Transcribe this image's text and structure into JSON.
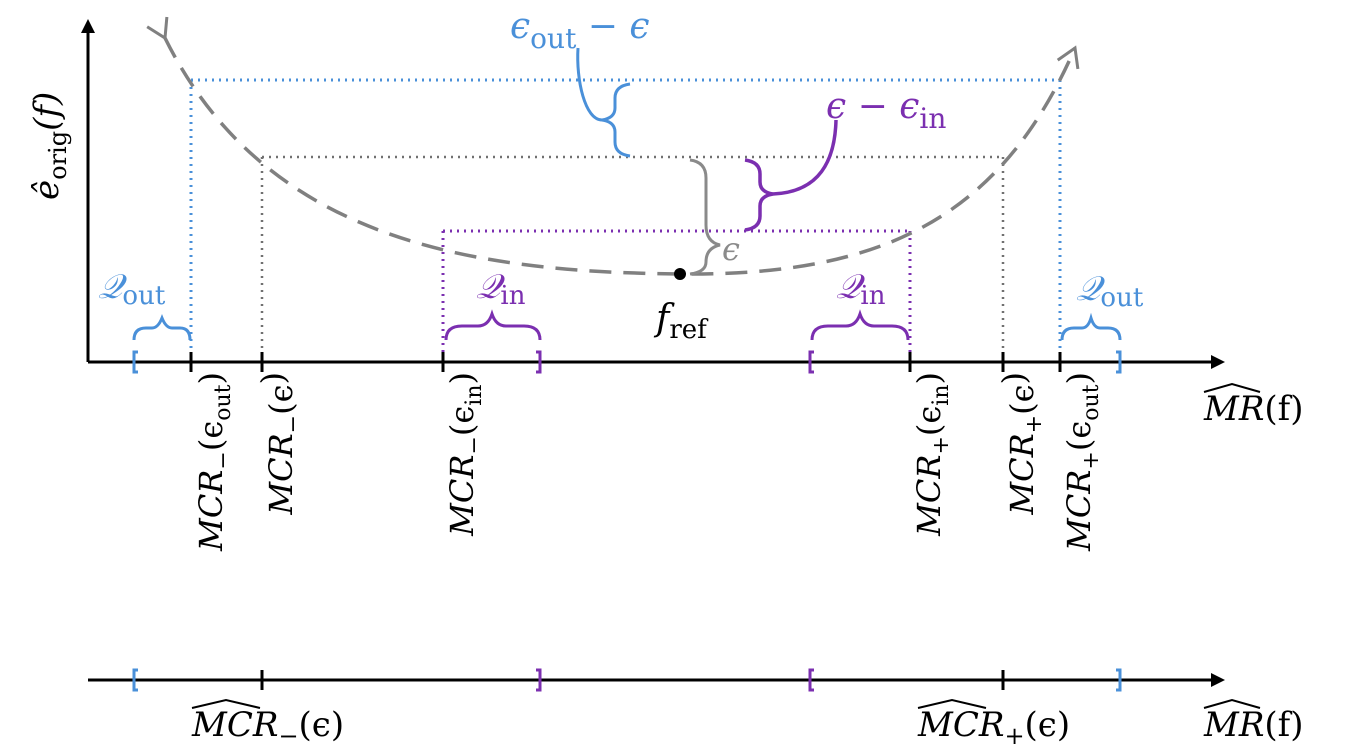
{
  "colors": {
    "axis": "#000000",
    "curve": "#808080",
    "outer": "#4a90d9",
    "inner": "#7b2fb0",
    "eps": "#8a8a8a"
  },
  "y_axis_label": {
    "base": "ê",
    "sub": "orig",
    "tail": "(f)"
  },
  "x_axis_label": {
    "hat": "MR",
    "tail": "(f)"
  },
  "annotations": {
    "eps_out_minus_eps": {
      "a": "ϵ",
      "a_sub": "out",
      "b": " − ϵ"
    },
    "eps_minus_eps_in": {
      "a": "ϵ − ϵ",
      "a_sub": "in"
    },
    "eps": "ϵ",
    "f_ref": {
      "base": "f",
      "sub": "ref"
    }
  },
  "set_labels": {
    "q_out": {
      "base": "𝒬",
      "sub": "out"
    },
    "q_in": {
      "base": "𝒬",
      "sub": "in"
    }
  },
  "tick_labels": [
    {
      "hat": "MCR",
      "sign": "−",
      "arg": "(ϵ",
      "arg_sub": "out",
      "close": ")"
    },
    {
      "hat": "MCR",
      "sign": "−",
      "arg": "(ϵ",
      "arg_sub": "",
      "close": ")"
    },
    {
      "hat": "MCR",
      "sign": "−",
      "arg": "(ϵ",
      "arg_sub": "in",
      "close": ")"
    },
    {
      "hat": "MCR",
      "sign": "+",
      "arg": "(ϵ",
      "arg_sub": "in",
      "close": ")"
    },
    {
      "hat": "MCR",
      "sign": "+",
      "arg": "(ϵ",
      "arg_sub": "",
      "close": ")"
    },
    {
      "hat": "MCR",
      "sign": "+",
      "arg": "(ϵ",
      "arg_sub": "out",
      "close": ")"
    }
  ],
  "bottom_labels": [
    {
      "hat": "MCR",
      "sign": "−",
      "arg": "(ϵ)"
    },
    {
      "hat": "MCR",
      "sign": "+",
      "arg": "(ϵ)"
    }
  ]
}
